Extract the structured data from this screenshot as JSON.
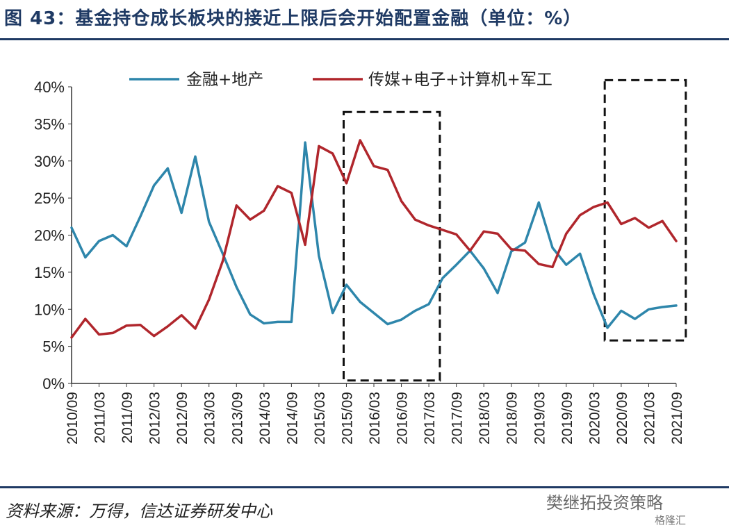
{
  "header": {
    "title": "图 43：基金持仓成长板块的接近上限后会开始配置金融（单位：%）"
  },
  "footer": {
    "source": "资料来源：万得，信达证券研发中心",
    "watermark": "樊继拓投资策略",
    "watermark_small": "格隆汇"
  },
  "chart_data": {
    "type": "line",
    "title": "",
    "xlabel": "",
    "ylabel": "",
    "ylim": [
      0,
      40
    ],
    "yticks": [
      "0%",
      "5%",
      "10%",
      "15%",
      "20%",
      "25%",
      "30%",
      "35%",
      "40%"
    ],
    "x_labels": [
      "2010/09",
      "2011/03",
      "2011/09",
      "2012/03",
      "2012/09",
      "2013/03",
      "2013/09",
      "2014/03",
      "2014/09",
      "2015/03",
      "2015/09",
      "2016/03",
      "2016/09",
      "2017/03",
      "2017/09",
      "2018/03",
      "2018/09",
      "2019/03",
      "2019/09",
      "2020/03",
      "2020/09",
      "2021/03",
      "2021/09"
    ],
    "legend_position": "top",
    "grid": false,
    "series": [
      {
        "name": "金融+地产",
        "color": "#2e86ab",
        "values": [
          21,
          17,
          19.2,
          20,
          18.5,
          22.5,
          26.7,
          29,
          23,
          30.6,
          21.8,
          17.5,
          13,
          9.3,
          8.1,
          8.3,
          8.3,
          32.5,
          17.2,
          9.5,
          13.3,
          11,
          9.5,
          8,
          8.6,
          9.8,
          10.7,
          14.2,
          16,
          17.9,
          15.5,
          12.2,
          17.8,
          19,
          24.4,
          18.3,
          16,
          17.5,
          12,
          7.5,
          9.8,
          8.7,
          10,
          10.3,
          10.5
        ]
      },
      {
        "name": "传媒+电子+计算机+军工",
        "color": "#b0262c",
        "values": [
          6.2,
          8.7,
          6.6,
          6.8,
          7.8,
          7.9,
          6.4,
          7.7,
          9.2,
          7.4,
          11.3,
          16.5,
          24,
          22.1,
          23.3,
          26.6,
          25.7,
          18.7,
          32,
          31,
          27,
          32.8,
          29.3,
          28.8,
          24.6,
          22.1,
          21.3,
          20.7,
          20.1,
          17.9,
          20.5,
          20.2,
          18.1,
          17.9,
          16.1,
          15.7,
          20.2,
          22.7,
          23.8,
          24.4,
          21.5,
          22.3,
          21,
          21.9,
          19.2
        ]
      }
    ],
    "annotations": [
      {
        "type": "dashed-box",
        "x_start": 19.8,
        "x_end": 26.8,
        "y_top": 36.6,
        "y_bottom": 0.4
      },
      {
        "type": "dashed-box",
        "x_start": 38.8,
        "x_end": 44.7,
        "y_top": 40.9,
        "y_bottom": 5.8
      }
    ]
  }
}
